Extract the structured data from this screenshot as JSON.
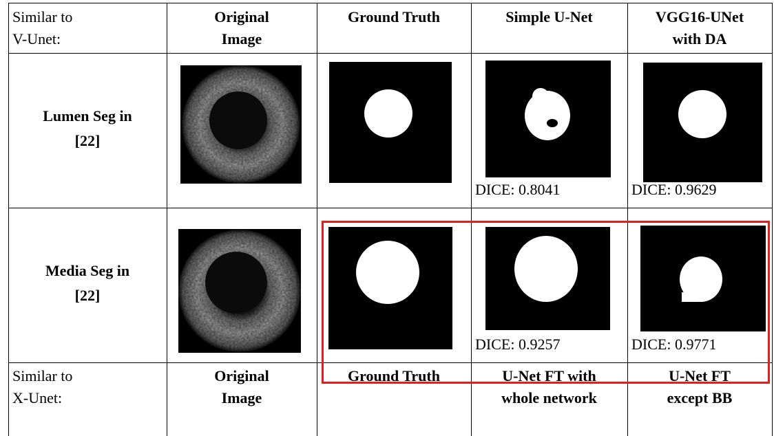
{
  "table": {
    "header": [
      [
        "Similar to",
        "V-Unet:"
      ],
      [
        "Original",
        "Image"
      ],
      [
        "Ground Truth"
      ],
      [
        "Simple U-Net"
      ],
      [
        "VGG16-UNet",
        "with DA"
      ]
    ],
    "rows": [
      {
        "label": [
          "Lumen Seg in",
          "[22]"
        ],
        "dice": [
          "DICE: 0.8041",
          "DICE: 0.9629"
        ]
      },
      {
        "label": [
          "Media Seg in",
          "[22]"
        ],
        "dice": [
          "DICE: 0.9257",
          "DICE: 0.9771"
        ]
      }
    ],
    "footer": [
      [
        "Similar to",
        "X-Unet:"
      ],
      [
        "Original",
        "Image"
      ],
      [
        "Ground Truth"
      ],
      [
        "U-Net FT with",
        "whole network"
      ],
      [
        "U-Net FT",
        "except BB"
      ]
    ]
  }
}
